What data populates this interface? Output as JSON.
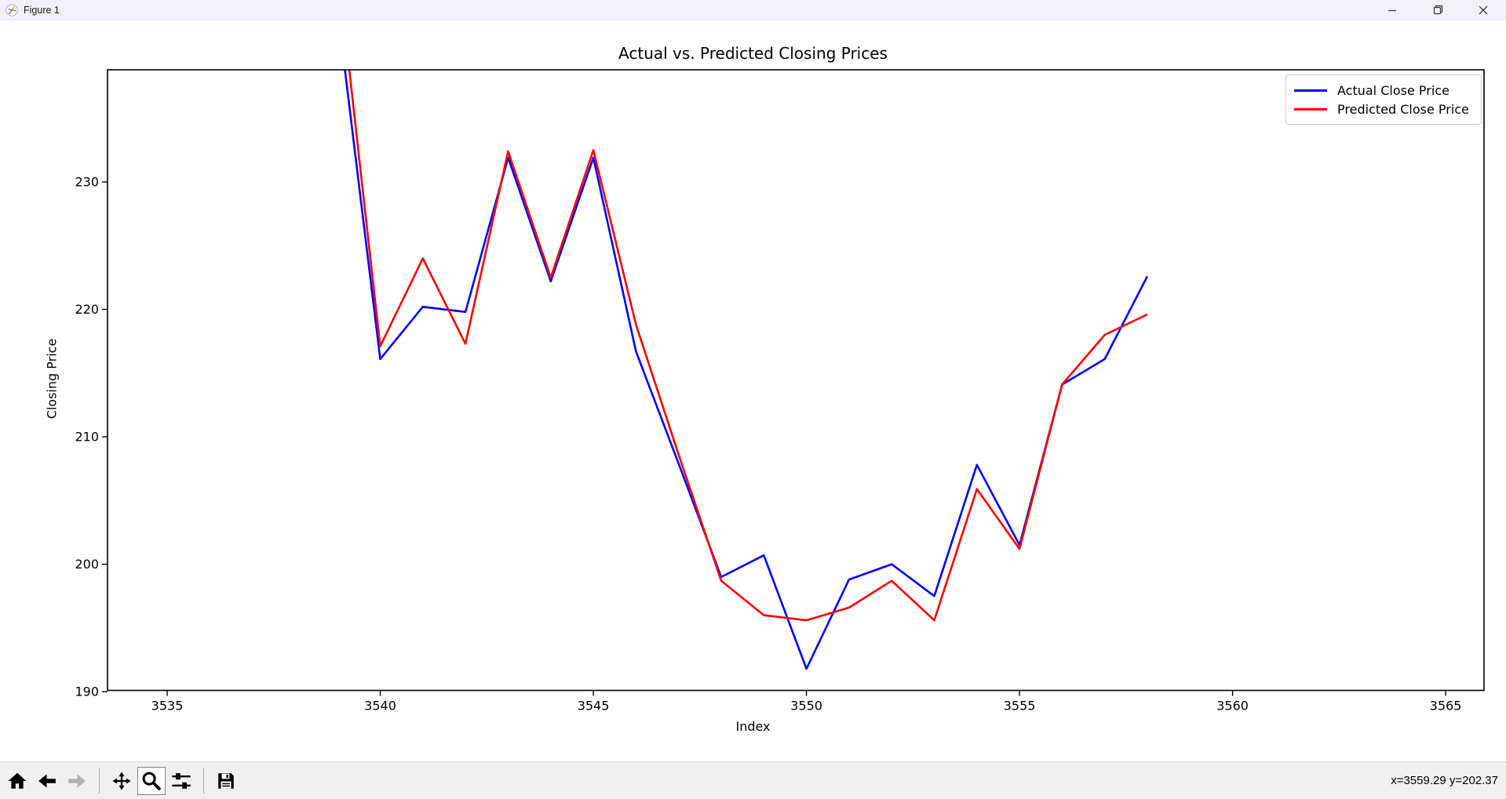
{
  "window": {
    "title": "Figure 1",
    "app_icon": "matplotlib-logo-icon",
    "controls": [
      "minimize-button",
      "restore-button",
      "close-button"
    ]
  },
  "chart_data": {
    "type": "line",
    "title": "Actual vs. Predicted Closing Prices",
    "xlabel": "Index",
    "ylabel": "Closing Price",
    "xlim": [
      3533.6,
      3565.9
    ],
    "ylim": [
      190.1,
      238.8
    ],
    "x_ticks": [
      3535,
      3540,
      3545,
      3550,
      3555,
      3560,
      3565
    ],
    "y_ticks": [
      190,
      200,
      210,
      220,
      230
    ],
    "grid": false,
    "legend_position": "upper right",
    "x": [
      3539,
      3540,
      3541,
      3542,
      3543,
      3544,
      3545,
      3546,
      3547,
      3548,
      3549,
      3550,
      3551,
      3552,
      3553,
      3554,
      3555,
      3556,
      3557,
      3558
    ],
    "series": [
      {
        "name": "Actual Close Price",
        "color": "#0000ff",
        "values": [
          243.5,
          216.1,
          220.2,
          219.8,
          231.9,
          222.2,
          231.9,
          216.7,
          207.9,
          199.0,
          200.7,
          191.8,
          198.8,
          200.0,
          197.5,
          207.8,
          201.5,
          214.1,
          216.1,
          222.6
        ]
      },
      {
        "name": "Predicted Close Price",
        "color": "#ff0000",
        "values": [
          247.0,
          217.1,
          224.0,
          217.3,
          232.4,
          222.5,
          232.5,
          218.8,
          208.6,
          198.7,
          196.0,
          195.6,
          196.6,
          198.7,
          195.6,
          205.9,
          201.2,
          214.1,
          218.0,
          219.6
        ]
      }
    ]
  },
  "toolbar": {
    "buttons": [
      {
        "id": "home",
        "icon": "home-icon",
        "enabled": true,
        "active": false
      },
      {
        "id": "back",
        "icon": "back-arrow-icon",
        "enabled": true,
        "active": false
      },
      {
        "id": "forward",
        "icon": "forward-arrow-icon",
        "enabled": false,
        "active": false
      },
      {
        "id": "pan",
        "icon": "pan-arrows-icon",
        "enabled": true,
        "active": false
      },
      {
        "id": "zoom",
        "icon": "zoom-magnifier-icon",
        "enabled": true,
        "active": true
      },
      {
        "id": "configure-subplots",
        "icon": "sliders-icon",
        "enabled": true,
        "active": false
      },
      {
        "id": "save",
        "icon": "floppy-disk-icon",
        "enabled": true,
        "active": false
      }
    ],
    "status_text": "x=3559.29 y=202.37"
  }
}
